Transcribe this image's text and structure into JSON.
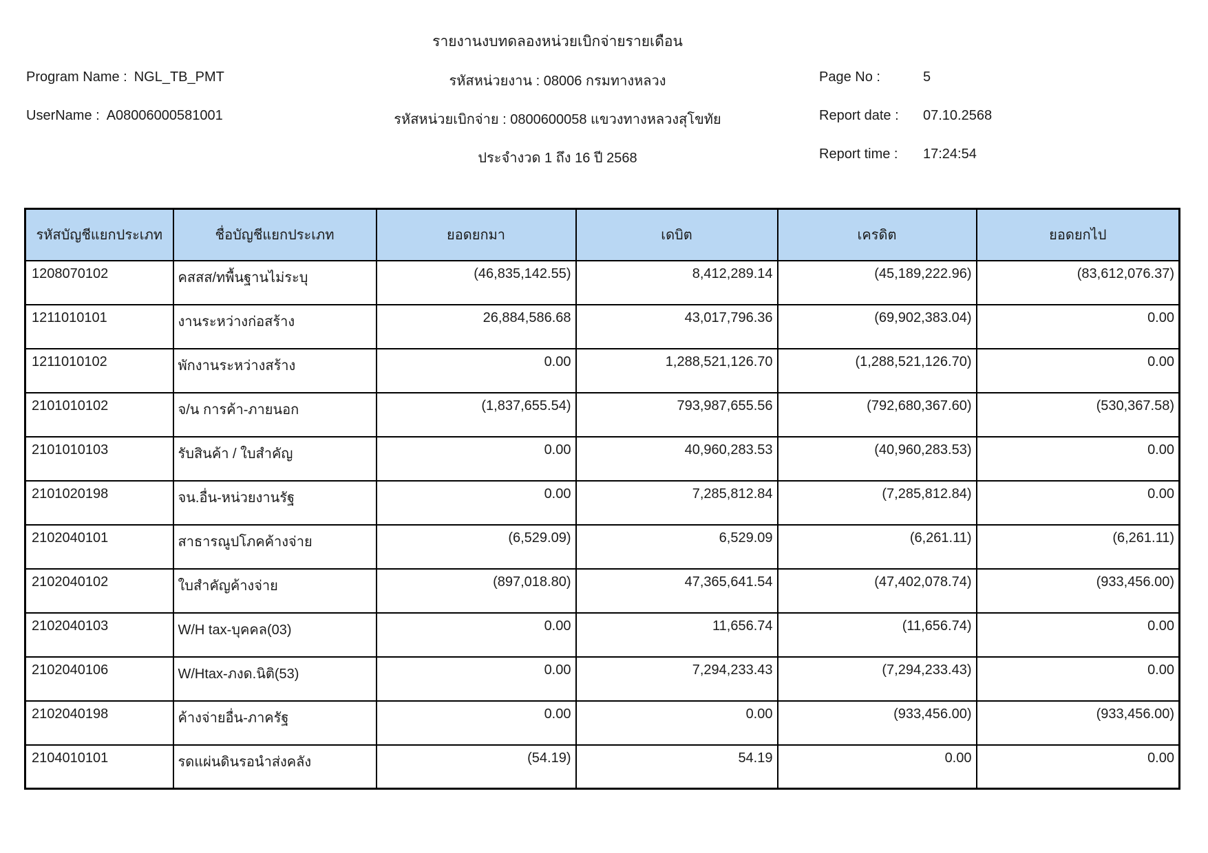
{
  "report": {
    "title": "รายงานงบทดลองหน่วยเบิกจ่ายรายเดือน",
    "program_name_label": "Program Name :",
    "program_name": "NGL_TB_PMT",
    "username_label": "UserName :",
    "username": "A08006000581001",
    "agency_line": "รหัสหน่วยงาน : 08006 กรมทางหลวง",
    "disbursement_unit_line": "รหัสหน่วยเบิกจ่าย : 0800600058 แขวงทางหลวงสุโขทัย",
    "period_line": "ประจำงวด 1 ถึง 16 ปี 2568",
    "page_no_label": "Page No :",
    "page_no": "5",
    "report_date_label": "Report date :",
    "report_date": "07.10.2568",
    "report_time_label": "Report time :",
    "report_time": "17:24:54"
  },
  "table": {
    "header_bg": "#b9d7f3",
    "columns": [
      "รหัสบัญชีแยกประเภท",
      "ชื่อบัญชีแยกประเภท",
      "ยอดยกมา",
      "เดบิต",
      "เครดิต",
      "ยอดยกไป"
    ],
    "rows": [
      [
        "1208070102",
        "คสสส/ทพื้นฐานไม่ระบุ",
        "(46,835,142.55)",
        "8,412,289.14",
        "(45,189,222.96)",
        "(83,612,076.37)"
      ],
      [
        "1211010101",
        "งานระหว่างก่อสร้าง",
        "26,884,586.68",
        "43,017,796.36",
        "(69,902,383.04)",
        "0.00"
      ],
      [
        "1211010102",
        "พักงานระหว่างสร้าง",
        "0.00",
        "1,288,521,126.70",
        "(1,288,521,126.70)",
        "0.00"
      ],
      [
        "2101010102",
        "จ/น การค้า-ภายนอก",
        "(1,837,655.54)",
        "793,987,655.56",
        "(792,680,367.60)",
        "(530,367.58)"
      ],
      [
        "2101010103",
        "รับสินค้า / ใบสำคัญ",
        "0.00",
        "40,960,283.53",
        "(40,960,283.53)",
        "0.00"
      ],
      [
        "2101020198",
        "จน.อื่น-หน่วยงานรัฐ",
        "0.00",
        "7,285,812.84",
        "(7,285,812.84)",
        "0.00"
      ],
      [
        "2102040101",
        "สาธารณูปโภคค้างจ่าย",
        "(6,529.09)",
        "6,529.09",
        "(6,261.11)",
        "(6,261.11)"
      ],
      [
        "2102040102",
        "ใบสำคัญค้างจ่าย",
        "(897,018.80)",
        "47,365,641.54",
        "(47,402,078.74)",
        "(933,456.00)"
      ],
      [
        "2102040103",
        "W/H tax-บุคคล(03)",
        "0.00",
        "11,656.74",
        "(11,656.74)",
        "0.00"
      ],
      [
        "2102040106",
        "W/Htax-ภงด.นิติ(53)",
        "0.00",
        "7,294,233.43",
        "(7,294,233.43)",
        "0.00"
      ],
      [
        "2102040198",
        "ค้างจ่ายอื่น-ภาครัฐ",
        "0.00",
        "0.00",
        "(933,456.00)",
        "(933,456.00)"
      ],
      [
        "2104010101",
        "รดแผ่นดินรอนำส่งคลัง",
        "(54.19)",
        "54.19",
        "0.00",
        "0.00"
      ]
    ]
  }
}
